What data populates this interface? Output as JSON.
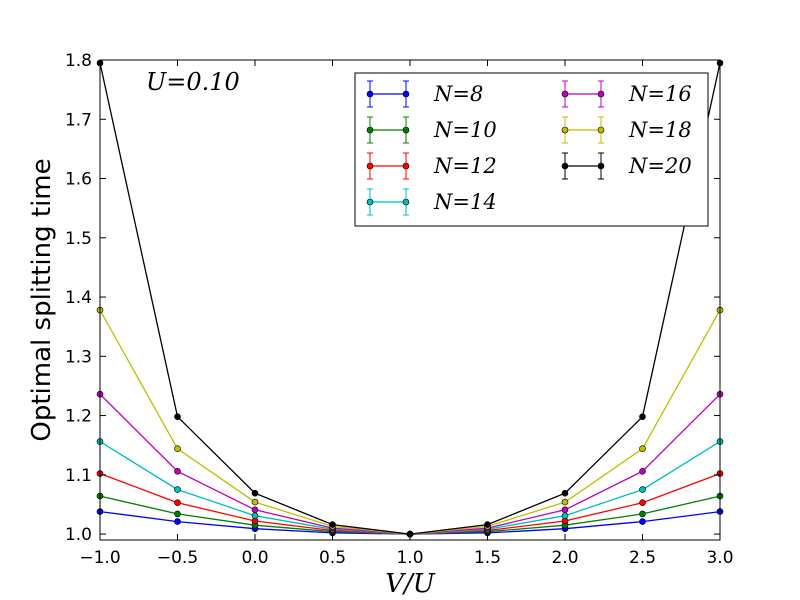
{
  "chart_data": {
    "type": "line",
    "annotation": "U=0.10",
    "xlabel": "V/U",
    "ylabel": "Optimal splitting time",
    "xlim": [
      -1.0,
      3.0
    ],
    "ylim": [
      0.99,
      1.8
    ],
    "x_ticks": [
      "−1.0",
      "−0.5",
      "0.0",
      "0.5",
      "1.0",
      "1.5",
      "2.0",
      "2.5",
      "3.0"
    ],
    "x_tick_values": [
      -1.0,
      -0.5,
      0.0,
      0.5,
      1.0,
      1.5,
      2.0,
      2.5,
      3.0
    ],
    "y_ticks": [
      "1.0",
      "1.1",
      "1.2",
      "1.3",
      "1.4",
      "1.5",
      "1.6",
      "1.7",
      "1.8"
    ],
    "y_tick_values": [
      1.0,
      1.1,
      1.2,
      1.3,
      1.4,
      1.5,
      1.6,
      1.7,
      1.8
    ],
    "grid": false,
    "legend_position": "top-right",
    "x": [
      -1.0,
      -0.5,
      0.0,
      0.5,
      1.0,
      1.5,
      2.0,
      2.5,
      3.0
    ],
    "series": [
      {
        "name": "N=8",
        "color": "#0000ff",
        "values": [
          1.038,
          1.021,
          1.009,
          1.002,
          1.0,
          1.002,
          1.009,
          1.021,
          1.038
        ]
      },
      {
        "name": "N=10",
        "color": "#008000",
        "values": [
          1.064,
          1.034,
          1.015,
          1.004,
          1.0,
          1.004,
          1.015,
          1.034,
          1.064
        ]
      },
      {
        "name": "N=12",
        "color": "#ff0000",
        "values": [
          1.102,
          1.053,
          1.022,
          1.006,
          1.0,
          1.006,
          1.022,
          1.053,
          1.102
        ]
      },
      {
        "name": "N=14",
        "color": "#00bfbf",
        "values": [
          1.156,
          1.075,
          1.031,
          1.008,
          1.0,
          1.008,
          1.031,
          1.075,
          1.156
        ]
      },
      {
        "name": "N=16",
        "color": "#bf00bf",
        "values": [
          1.236,
          1.106,
          1.041,
          1.01,
          1.0,
          1.01,
          1.041,
          1.106,
          1.236
        ]
      },
      {
        "name": "N=18",
        "color": "#bfbf00",
        "values": [
          1.378,
          1.144,
          1.054,
          1.013,
          1.0,
          1.013,
          1.054,
          1.144,
          1.378
        ]
      },
      {
        "name": "N=20",
        "color": "#000000",
        "values": [
          1.795,
          1.198,
          1.069,
          1.016,
          1.0,
          1.016,
          1.069,
          1.198,
          1.795
        ]
      }
    ]
  }
}
